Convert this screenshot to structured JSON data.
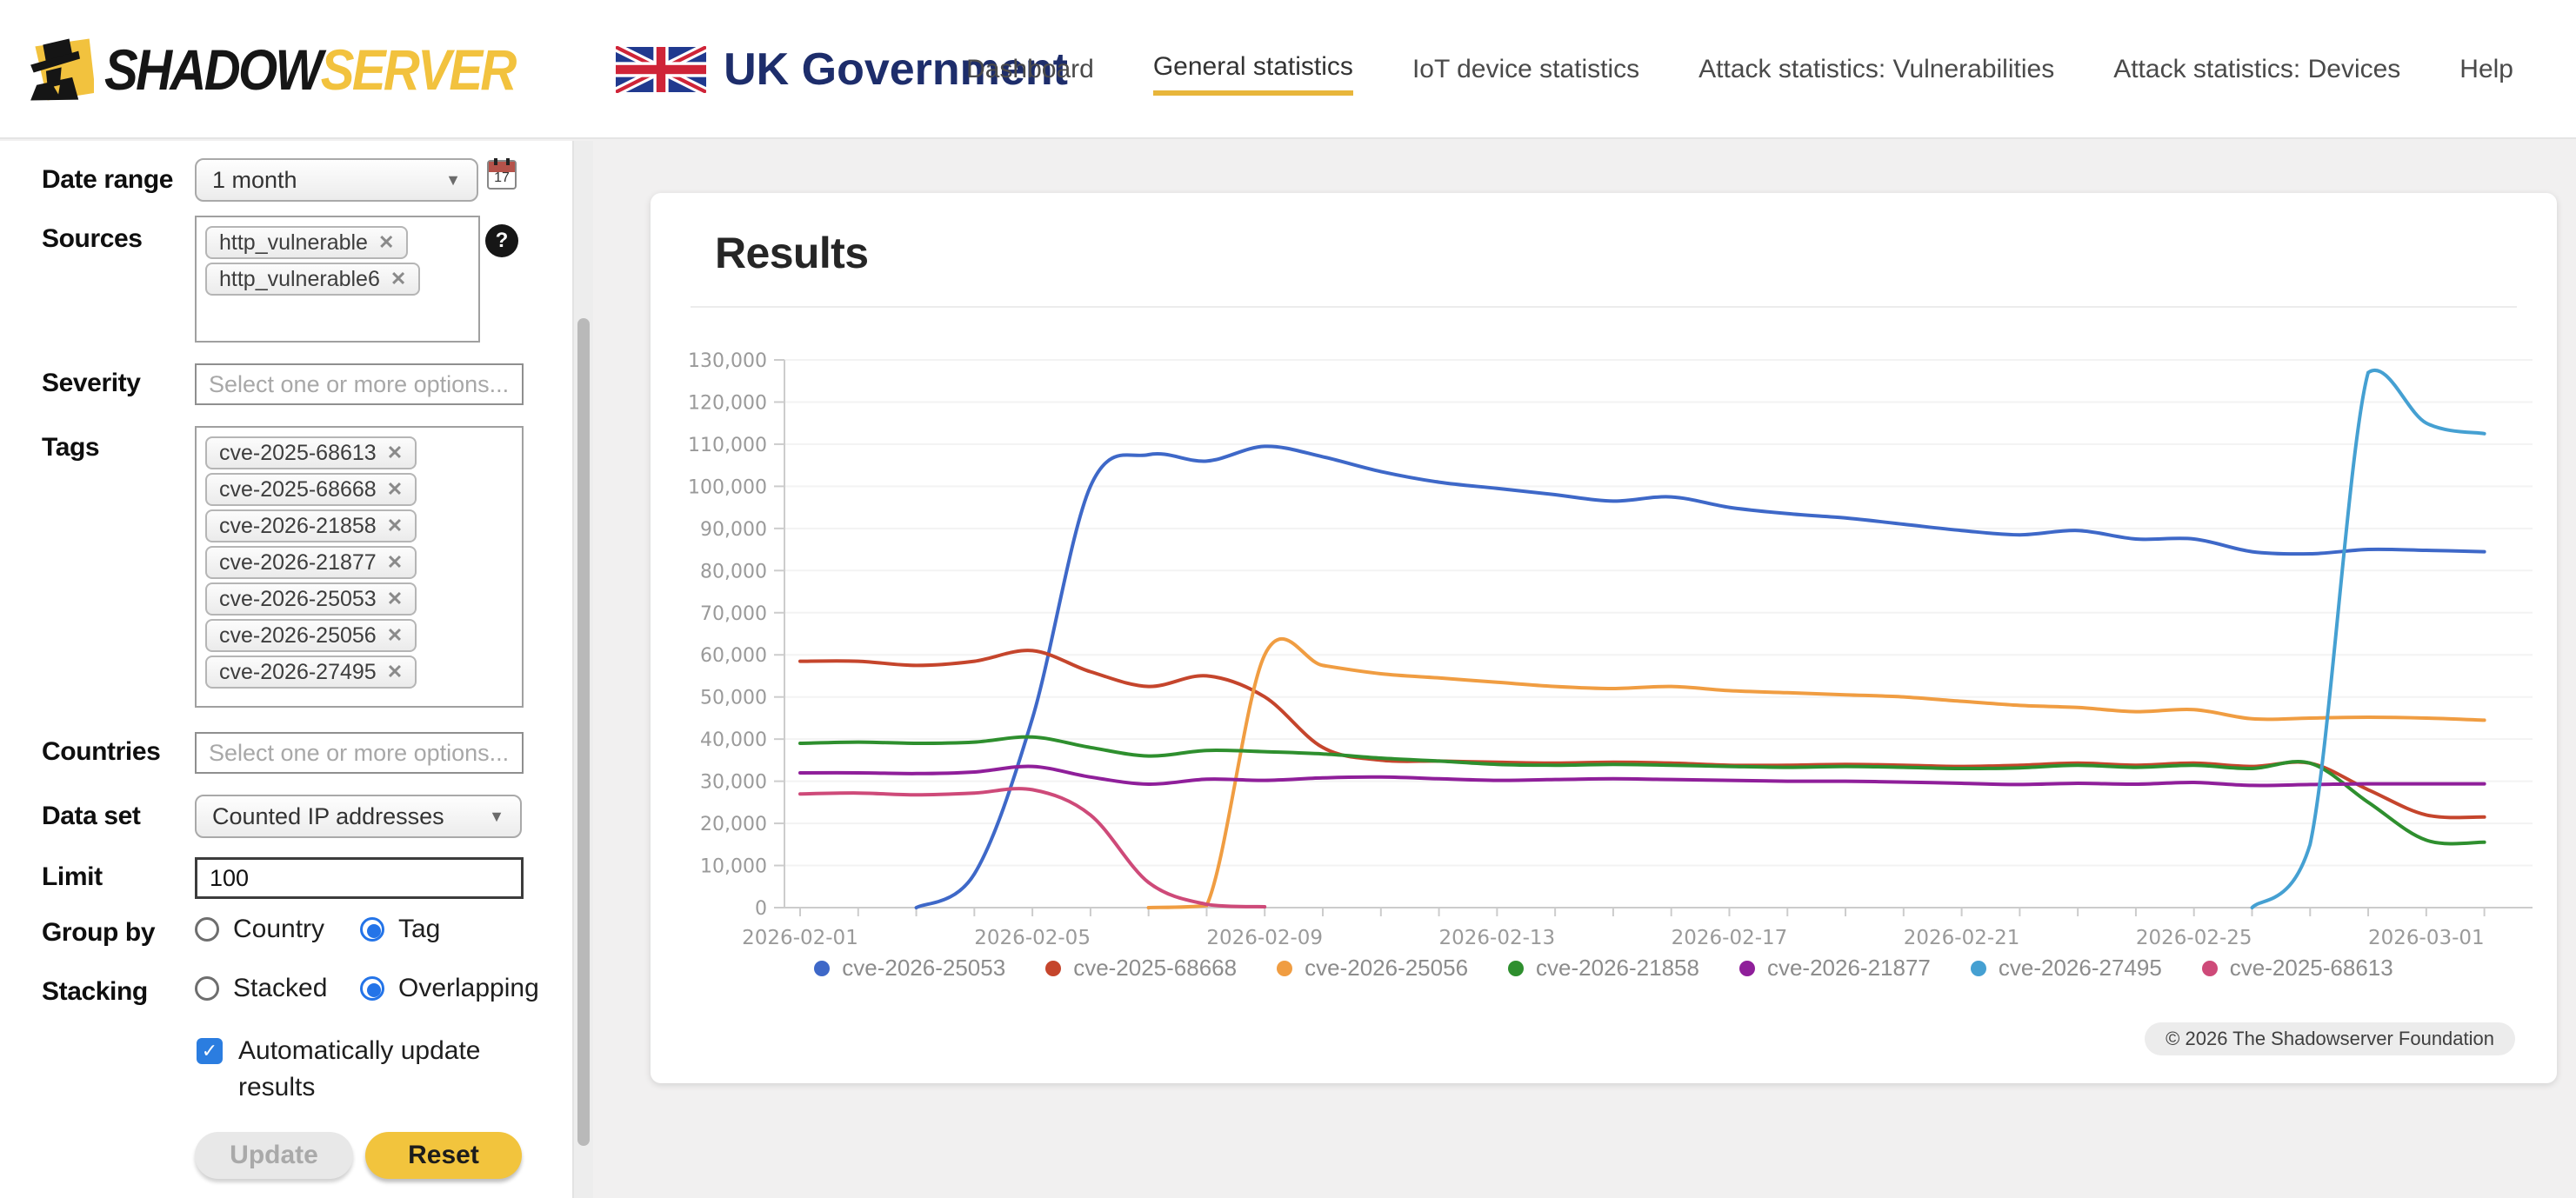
{
  "header": {
    "brand": {
      "shadow": "SHADOW",
      "server": "SERVER",
      "org": "UK Government"
    },
    "nav": [
      {
        "label": "Dashboard",
        "active": false
      },
      {
        "label": "General statistics",
        "active": true
      },
      {
        "label": "IoT device statistics",
        "active": false
      },
      {
        "label": "Attack statistics: Vulnerabilities",
        "active": false
      },
      {
        "label": "Attack statistics: Devices",
        "active": false
      },
      {
        "label": "Help",
        "active": false
      }
    ]
  },
  "sidebar": {
    "date_range": {
      "label": "Date range",
      "value": "1 month"
    },
    "sources": {
      "label": "Sources",
      "chips": [
        "http_vulnerable",
        "http_vulnerable6"
      ]
    },
    "severity": {
      "label": "Severity",
      "placeholder": "Select one or more options..."
    },
    "tags": {
      "label": "Tags",
      "chips": [
        "cve-2025-68613",
        "cve-2025-68668",
        "cve-2026-21858",
        "cve-2026-21877",
        "cve-2026-25053",
        "cve-2026-25056",
        "cve-2026-27495"
      ]
    },
    "countries": {
      "label": "Countries",
      "placeholder": "Select one or more options..."
    },
    "data_set": {
      "label": "Data set",
      "value": "Counted IP addresses"
    },
    "limit": {
      "label": "Limit",
      "value": "100"
    },
    "group_by": {
      "label": "Group by",
      "options": [
        {
          "label": "Country",
          "selected": false
        },
        {
          "label": "Tag",
          "selected": true
        }
      ]
    },
    "stacking": {
      "label": "Stacking",
      "options": [
        {
          "label": "Stacked",
          "selected": false
        },
        {
          "label": "Overlapping",
          "selected": true
        }
      ]
    },
    "auto_update": {
      "label": "Automatically update results",
      "checked": true,
      "check_glyph": "✓"
    },
    "buttons": {
      "update": "Update",
      "reset": "Reset"
    }
  },
  "main": {
    "title": "Results",
    "copyright": "© 2026 The Shadowserver Foundation"
  },
  "chart_data": {
    "type": "line",
    "title": "Results",
    "xlabel": "",
    "ylabel": "",
    "ylim": [
      0,
      130000
    ],
    "ytick_step": 10000,
    "grid": "faint-horizontal",
    "legend_position": "bottom",
    "dates": [
      "2026-02-01",
      "2026-02-02",
      "2026-02-03",
      "2026-02-04",
      "2026-02-05",
      "2026-02-06",
      "2026-02-07",
      "2026-02-08",
      "2026-02-09",
      "2026-02-10",
      "2026-02-11",
      "2026-02-12",
      "2026-02-13",
      "2026-02-14",
      "2026-02-15",
      "2026-02-16",
      "2026-02-17",
      "2026-02-18",
      "2026-02-19",
      "2026-02-20",
      "2026-02-21",
      "2026-02-22",
      "2026-02-23",
      "2026-02-24",
      "2026-02-25",
      "2026-02-26",
      "2026-02-27",
      "2026-02-28",
      "2026-03-01",
      "2026-03-02"
    ],
    "xticks": [
      "2026-02-01",
      "2026-02-05",
      "2026-02-09",
      "2026-02-13",
      "2026-02-17",
      "2026-02-21",
      "2026-02-25",
      "2026-03-01"
    ],
    "series": [
      {
        "name": "cve-2026-25053",
        "color": "#3e68c8",
        "values": [
          null,
          null,
          0,
          8000,
          45000,
          100000,
          107500,
          106000,
          109500,
          107000,
          103500,
          101000,
          99500,
          98000,
          96500,
          97500,
          95000,
          93500,
          92500,
          91000,
          89500,
          88500,
          89500,
          87500,
          87500,
          84500,
          84000,
          85000,
          84800,
          84500
        ]
      },
      {
        "name": "cve-2025-68668",
        "color": "#c5452c",
        "values": [
          58500,
          58500,
          57500,
          58500,
          61000,
          56000,
          52500,
          55000,
          50000,
          38000,
          35000,
          34800,
          34500,
          34300,
          34500,
          34300,
          33800,
          33800,
          34000,
          33800,
          33500,
          33800,
          34300,
          33800,
          34300,
          33500,
          34300,
          28000,
          22000,
          21500
        ]
      },
      {
        "name": "cve-2026-25056",
        "color": "#f09d42",
        "values": [
          null,
          null,
          null,
          null,
          null,
          null,
          0,
          500,
          60000,
          57500,
          55500,
          54500,
          53500,
          52500,
          52000,
          52500,
          51500,
          51000,
          50500,
          50000,
          49000,
          48000,
          47500,
          46500,
          47000,
          44800,
          45000,
          45200,
          45000,
          44500
        ]
      },
      {
        "name": "cve-2026-21858",
        "color": "#2e8f2e",
        "values": [
          39000,
          39300,
          39000,
          39300,
          40500,
          38000,
          36000,
          37300,
          37000,
          36500,
          35500,
          34800,
          34000,
          33800,
          34000,
          33800,
          33500,
          33300,
          33500,
          33300,
          33000,
          33200,
          33800,
          33300,
          33800,
          33000,
          34300,
          25000,
          16000,
          15500
        ]
      },
      {
        "name": "cve-2026-21877",
        "color": "#8f1f9a",
        "values": [
          32000,
          32000,
          31800,
          32200,
          33500,
          31000,
          29300,
          30500,
          30200,
          30800,
          31000,
          30600,
          30200,
          30400,
          30600,
          30400,
          30200,
          30000,
          30000,
          29800,
          29500,
          29200,
          29500,
          29300,
          29700,
          29000,
          29200,
          29400,
          29400,
          29400
        ]
      },
      {
        "name": "cve-2026-27495",
        "color": "#45a0d2",
        "values": [
          null,
          null,
          null,
          null,
          null,
          null,
          null,
          null,
          null,
          null,
          null,
          null,
          null,
          null,
          null,
          null,
          null,
          null,
          null,
          null,
          null,
          null,
          null,
          null,
          null,
          0,
          15000,
          127000,
          115000,
          112500
        ]
      },
      {
        "name": "cve-2025-68613",
        "color": "#ce4a79",
        "values": [
          27000,
          27200,
          26800,
          27200,
          28000,
          22000,
          6000,
          800,
          200,
          null,
          null,
          null,
          null,
          null,
          null,
          null,
          null,
          null,
          null,
          null,
          null,
          null,
          null,
          null,
          null,
          null,
          null,
          null,
          null,
          null
        ]
      }
    ]
  }
}
